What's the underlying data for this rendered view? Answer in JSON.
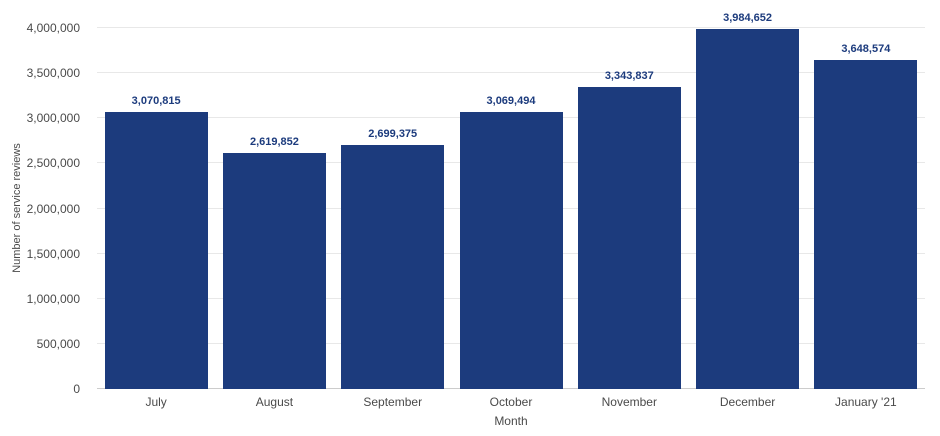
{
  "colors": {
    "bar": "#1c3b7d",
    "value_label": "#1c3b7d",
    "axis_text": "#4a4a4a",
    "gridline": "#e8e8e8",
    "baseline": "#cccccc",
    "background": "#ffffff"
  },
  "chart_data": {
    "type": "bar",
    "title": "",
    "categories": [
      "July",
      "August",
      "September",
      "October",
      "November",
      "December",
      "January '21"
    ],
    "values": [
      3070815,
      2619852,
      2699375,
      3069494,
      3343837,
      3984652,
      3648574
    ],
    "value_labels": [
      "3,070,815",
      "2,619,852",
      "2,699,375",
      "3,069,494",
      "3,343,837",
      "3,984,652",
      "3,648,574"
    ],
    "xlabel": "Month",
    "ylabel": "Number of service reviews",
    "ylim": [
      0,
      4000000
    ],
    "ytick_interval": 500000,
    "ytick_labels": [
      "0",
      "500,000",
      "1,000,000",
      "1,500,000",
      "2,000,000",
      "2,500,000",
      "3,000,000",
      "3,500,000",
      "4,000,000"
    ],
    "grid": true,
    "legend": false,
    "series_color": "#1c3b7d"
  }
}
